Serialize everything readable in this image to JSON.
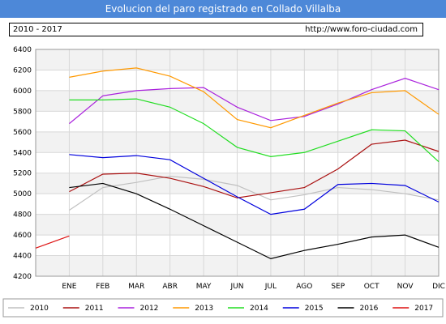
{
  "header": {
    "title": "Evolucion del paro registrado en Collado Villalba",
    "period": "2010 - 2017",
    "url": "http://www.foro-ciudad.com"
  },
  "chart_data": {
    "type": "line",
    "title": "Evolucion del paro registrado en Collado Villalba",
    "xlabel": "",
    "ylabel": "",
    "categories": [
      "ENE",
      "FEB",
      "MAR",
      "ABR",
      "MAY",
      "JUN",
      "JUL",
      "AGO",
      "SEP",
      "OCT",
      "NOV",
      "DIC"
    ],
    "ylim": [
      4200,
      6400
    ],
    "yticks": [
      4200,
      4400,
      4600,
      4800,
      5000,
      5200,
      5400,
      5600,
      5800,
      6000,
      6200,
      6400
    ],
    "grid": true,
    "legend_position": "bottom",
    "series": [
      {
        "name": "2010",
        "color": "#c0c0c0",
        "values": [
          4840,
          5060,
          5110,
          5170,
          5140,
          5080,
          4940,
          4990,
          5060,
          5040,
          5000,
          4940
        ]
      },
      {
        "name": "2011",
        "color": "#aa1111",
        "values": [
          5020,
          5190,
          5200,
          5150,
          5070,
          4960,
          5010,
          5060,
          5240,
          5480,
          5520,
          5410
        ]
      },
      {
        "name": "2012",
        "color": "#aa22dd",
        "values": [
          5680,
          5950,
          6000,
          6020,
          6030,
          5840,
          5710,
          5750,
          5870,
          6010,
          6120,
          6010
        ]
      },
      {
        "name": "2013",
        "color": "#ff9900",
        "values": [
          6130,
          6190,
          6220,
          6140,
          5990,
          5720,
          5640,
          5760,
          5880,
          5980,
          6000,
          5770
        ]
      },
      {
        "name": "2014",
        "color": "#22dd22",
        "values": [
          5910,
          5910,
          5920,
          5840,
          5680,
          5450,
          5360,
          5400,
          5510,
          5620,
          5610,
          5310
        ]
      },
      {
        "name": "2015",
        "color": "#0000dd",
        "values": [
          5380,
          5350,
          5370,
          5330,
          5150,
          4970,
          4800,
          4850,
          5090,
          5100,
          5080,
          4920
        ]
      },
      {
        "name": "2016",
        "color": "#000000",
        "values": [
          5060,
          5100,
          5000,
          4850,
          4690,
          4530,
          4370,
          4450,
          4510,
          4580,
          4600,
          4480
        ]
      },
      {
        "name": "2017",
        "color": "#dd1111",
        "values": [
          4590,
          null,
          null,
          null,
          null,
          null,
          null,
          null,
          null,
          null,
          null,
          null
        ]
      }
    ]
  }
}
